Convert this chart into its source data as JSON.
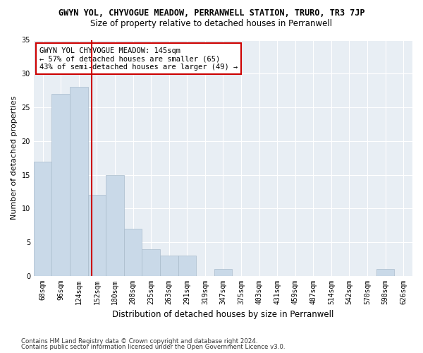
{
  "title": "GWYN YOL, CHYVOGUE MEADOW, PERRANWELL STATION, TRURO, TR3 7JP",
  "subtitle": "Size of property relative to detached houses in Perranwell",
  "xlabel": "Distribution of detached houses by size in Perranwell",
  "ylabel": "Number of detached properties",
  "footnote1": "Contains HM Land Registry data © Crown copyright and database right 2024.",
  "footnote2": "Contains public sector information licensed under the Open Government Licence v3.0.",
  "bar_labels": [
    "68sqm",
    "96sqm",
    "124sqm",
    "152sqm",
    "180sqm",
    "208sqm",
    "235sqm",
    "263sqm",
    "291sqm",
    "319sqm",
    "347sqm",
    "375sqm",
    "403sqm",
    "431sqm",
    "459sqm",
    "487sqm",
    "514sqm",
    "542sqm",
    "570sqm",
    "598sqm",
    "626sqm"
  ],
  "bar_values": [
    17,
    27,
    28,
    12,
    15,
    7,
    4,
    3,
    3,
    0,
    1,
    0,
    0,
    0,
    0,
    0,
    0,
    0,
    0,
    1,
    0
  ],
  "bar_color": "#c9d9e8",
  "bar_edgecolor": "#aabccc",
  "bar_width": 1.0,
  "vline_x": 2.72,
  "vline_color": "#cc0000",
  "annotation_line1": "GWYN YOL CHYVOGUE MEADOW: 145sqm",
  "annotation_line2": "← 57% of detached houses are smaller (65)",
  "annotation_line3": "43% of semi-detached houses are larger (49) →",
  "annotation_box_color": "#ffffff",
  "annotation_box_edgecolor": "#cc0000",
  "ylim": [
    0,
    35
  ],
  "yticks": [
    0,
    5,
    10,
    15,
    20,
    25,
    30,
    35
  ],
  "bg_color": "#ffffff",
  "axes_bg_color": "#e8eef4",
  "grid_color": "#ffffff",
  "title_fontsize": 8.5,
  "subtitle_fontsize": 8.5,
  "xlabel_fontsize": 8.5,
  "ylabel_fontsize": 8,
  "tick_fontsize": 7,
  "annotation_fontsize": 7.5,
  "footnote_fontsize": 6.2
}
